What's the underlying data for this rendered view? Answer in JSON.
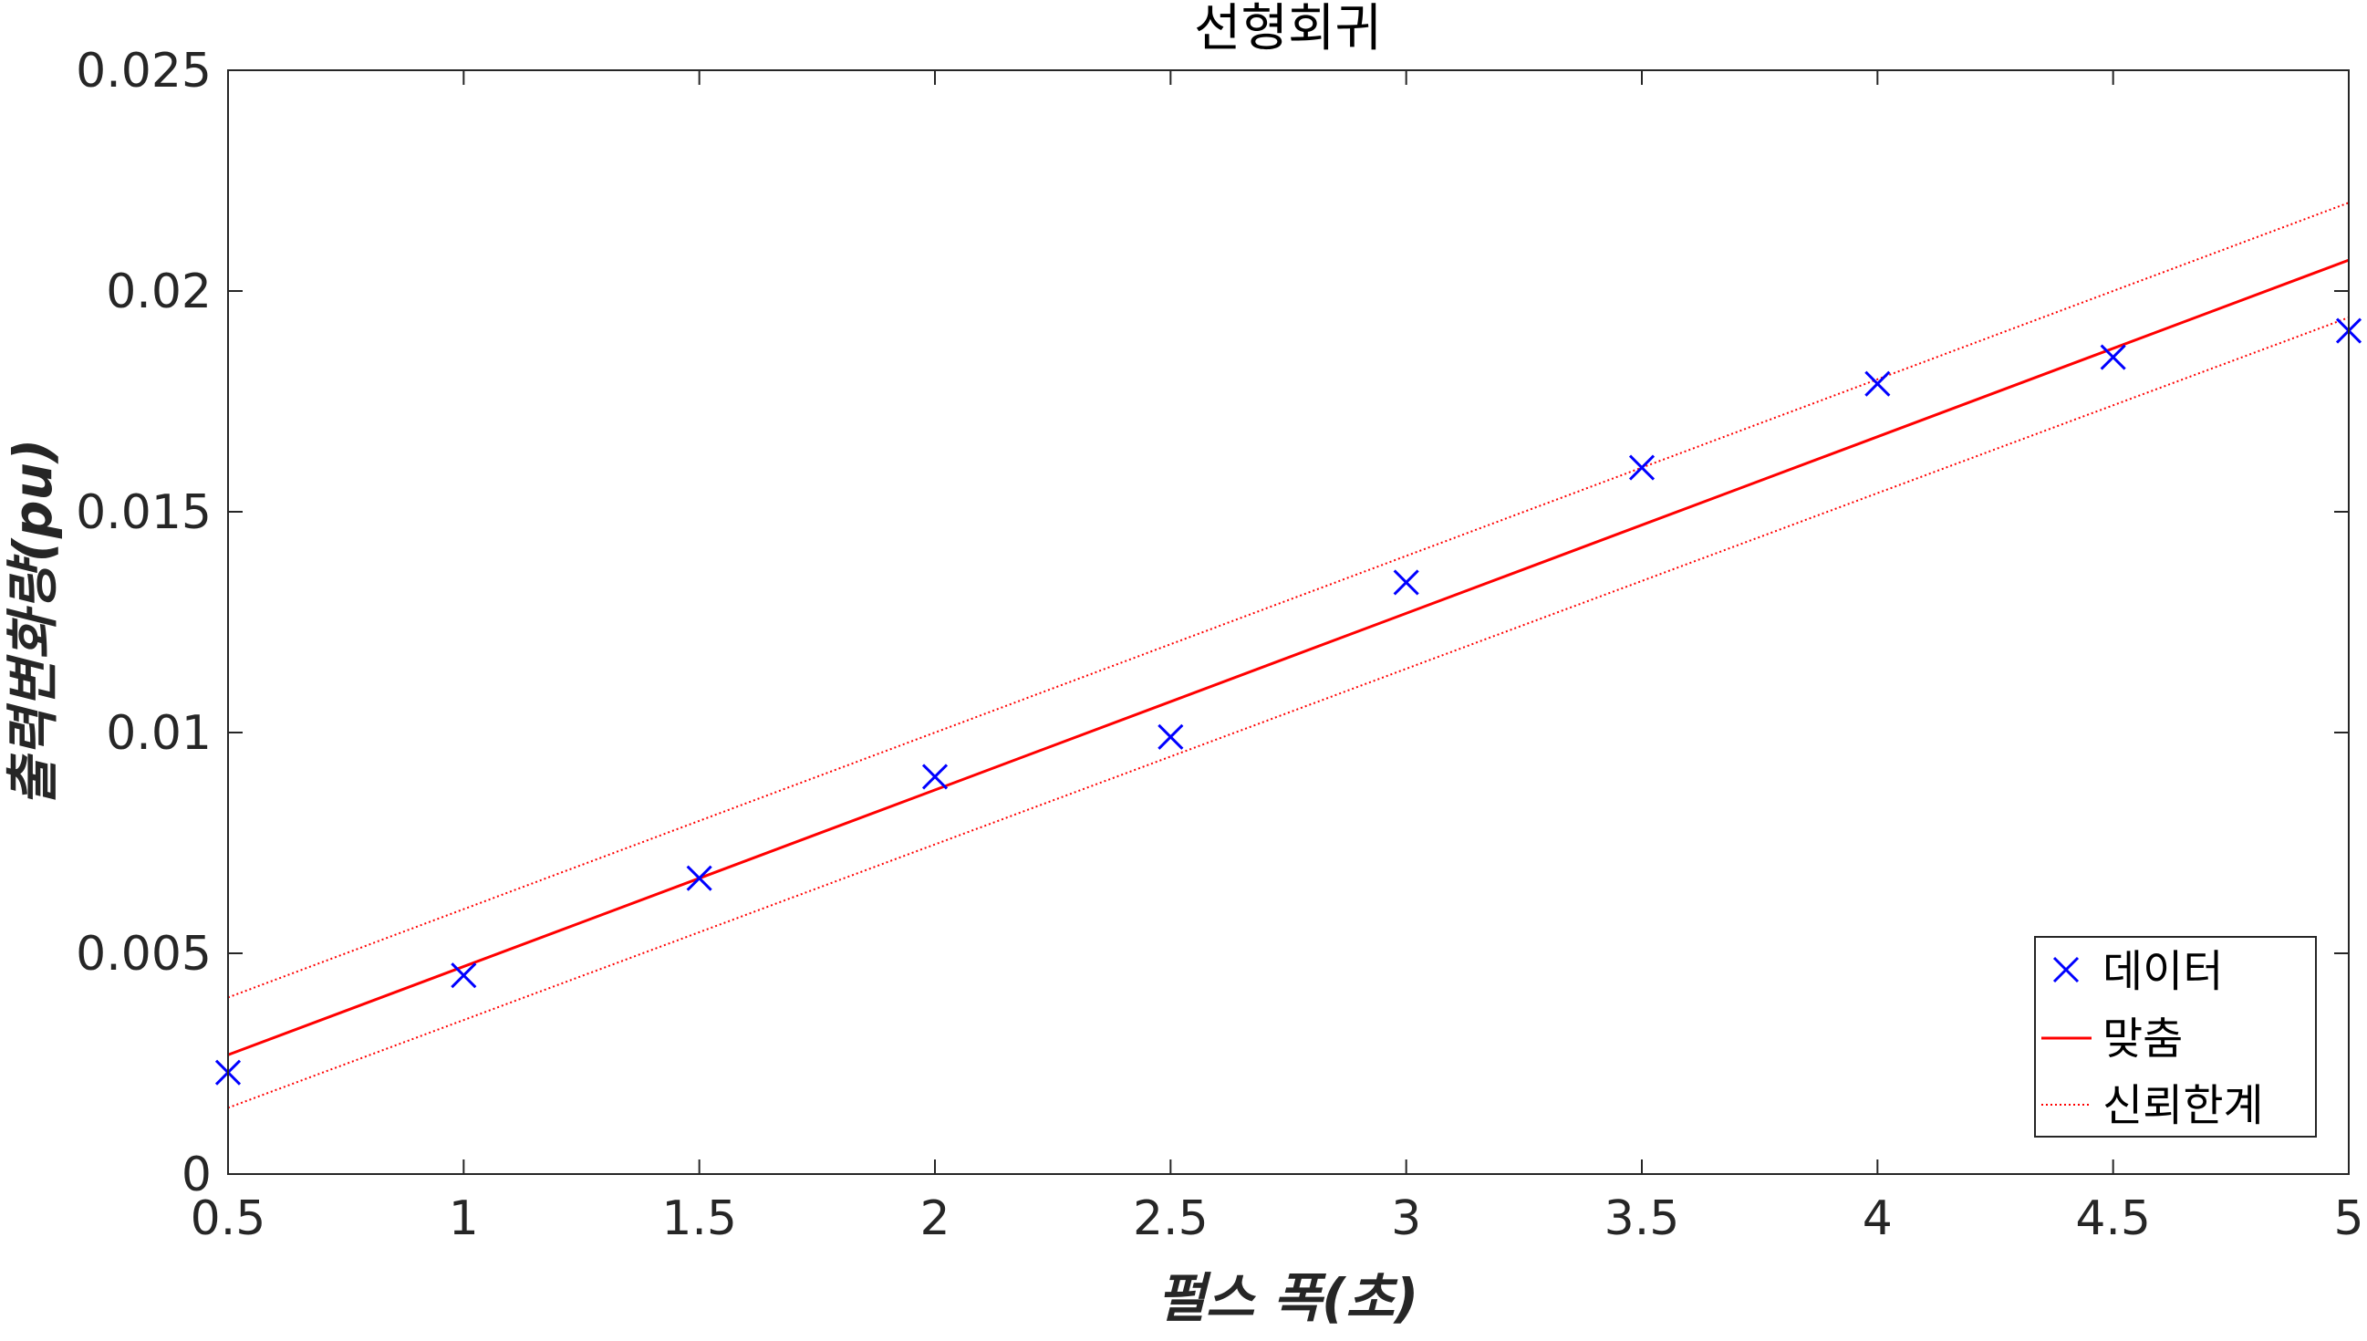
{
  "chart_data": {
    "type": "scatter",
    "title": "선형회귀",
    "xlabel": "펄스 폭(초)",
    "ylabel": "출력변화량(pu)",
    "xlim": [
      0.5,
      5
    ],
    "ylim": [
      0,
      0.025
    ],
    "xticks": [
      0.5,
      1,
      1.5,
      2,
      2.5,
      3,
      3.5,
      4,
      4.5,
      5
    ],
    "xtick_labels": [
      "0.5",
      "1",
      "1.5",
      "2",
      "2.5",
      "3",
      "3.5",
      "4",
      "4.5",
      "5"
    ],
    "yticks": [
      0,
      0.005,
      0.01,
      0.015,
      0.02,
      0.025
    ],
    "ytick_labels": [
      "0",
      "0.005",
      "0.01",
      "0.015",
      "0.02",
      "0.025"
    ],
    "grid": false,
    "legend_position": "bottom-right",
    "series": [
      {
        "name": "데이터",
        "kind": "markers",
        "marker": "x",
        "color": "#0000ff",
        "x": [
          0.5,
          1,
          1.5,
          2,
          2.5,
          3,
          3.5,
          4,
          4.5,
          5
        ],
        "y": [
          0.0023,
          0.0045,
          0.0067,
          0.009,
          0.0099,
          0.0134,
          0.016,
          0.0179,
          0.0185,
          0.0191
        ]
      },
      {
        "name": "맞춤",
        "kind": "line",
        "style": "solid",
        "color": "#ff0000",
        "x": [
          0.5,
          5
        ],
        "y": [
          0.0027,
          0.0207
        ]
      },
      {
        "name": "신뢰한계",
        "kind": "line",
        "style": "dotted",
        "color": "#ff0000",
        "x": [
          0.5,
          5
        ],
        "y": [
          0.004,
          0.022
        ]
      },
      {
        "name": "신뢰한계",
        "kind": "line",
        "style": "dotted",
        "color": "#ff0000",
        "x": [
          0.5,
          5
        ],
        "y": [
          0.0015,
          0.0194
        ]
      }
    ],
    "legend": [
      {
        "label": "데이터",
        "kind": "marker",
        "color": "#0000ff"
      },
      {
        "label": "맞춤",
        "kind": "solid",
        "color": "#ff0000"
      },
      {
        "label": "신뢰한계",
        "kind": "dotted",
        "color": "#ff0000"
      }
    ]
  }
}
